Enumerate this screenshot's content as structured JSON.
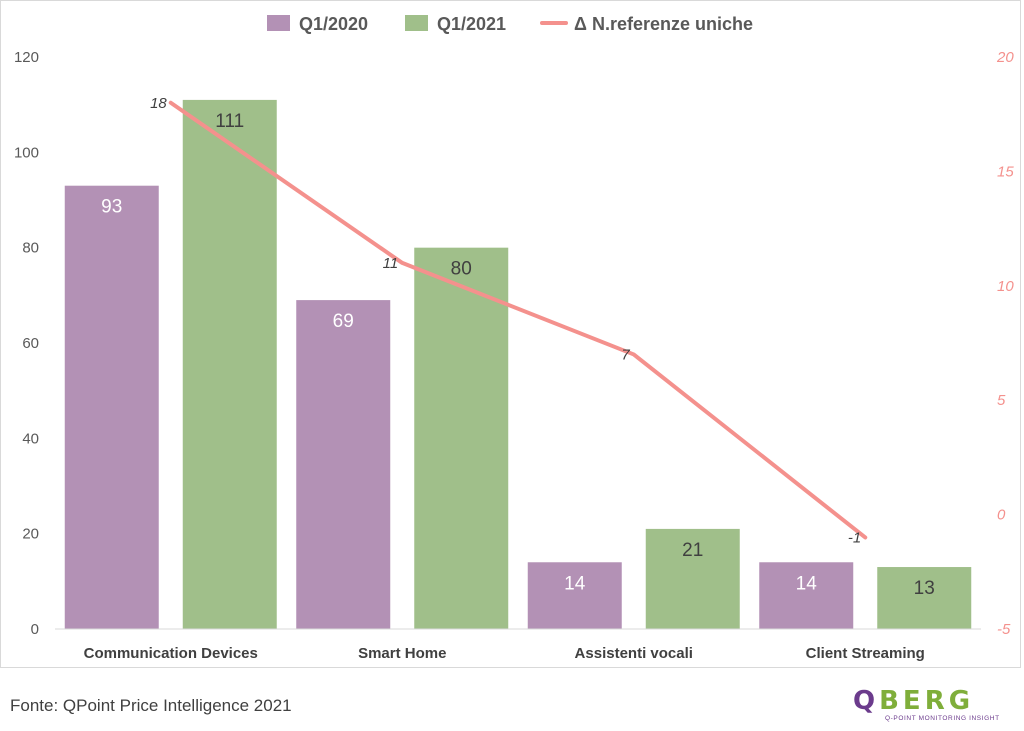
{
  "chart_data": {
    "type": "bar",
    "categories": [
      "Communication Devices",
      "Smart Home",
      "Assistenti vocali",
      "Client Streaming"
    ],
    "series": [
      {
        "name": "Q1/2020",
        "type": "bar",
        "axis": "left",
        "color": "#b391b5",
        "values": [
          93,
          69,
          14,
          14
        ]
      },
      {
        "name": "Q1/2021",
        "type": "bar",
        "axis": "left",
        "color": "#a0bf8a",
        "values": [
          111,
          80,
          21,
          13
        ]
      },
      {
        "name": "Δ N.referenze uniche",
        "type": "line",
        "axis": "right",
        "color": "#f4918d",
        "values": [
          18,
          11,
          7,
          -1
        ]
      }
    ],
    "y_left": {
      "min": 0,
      "max": 120,
      "ticks": [
        "0",
        "20",
        "40",
        "60",
        "80",
        "100",
        "120"
      ]
    },
    "y_right": {
      "min": -5,
      "max": 20,
      "ticks": [
        "-5",
        "0",
        "5",
        "10",
        "15",
        "20"
      ]
    },
    "grid": false,
    "legend_position": "top"
  },
  "source": "Fonte: QPoint Price Intelligence 2021",
  "logo": {
    "q": "Q",
    "rest": "BERG",
    "tagline": "Q-POINT MONITORING INSIGHT"
  }
}
